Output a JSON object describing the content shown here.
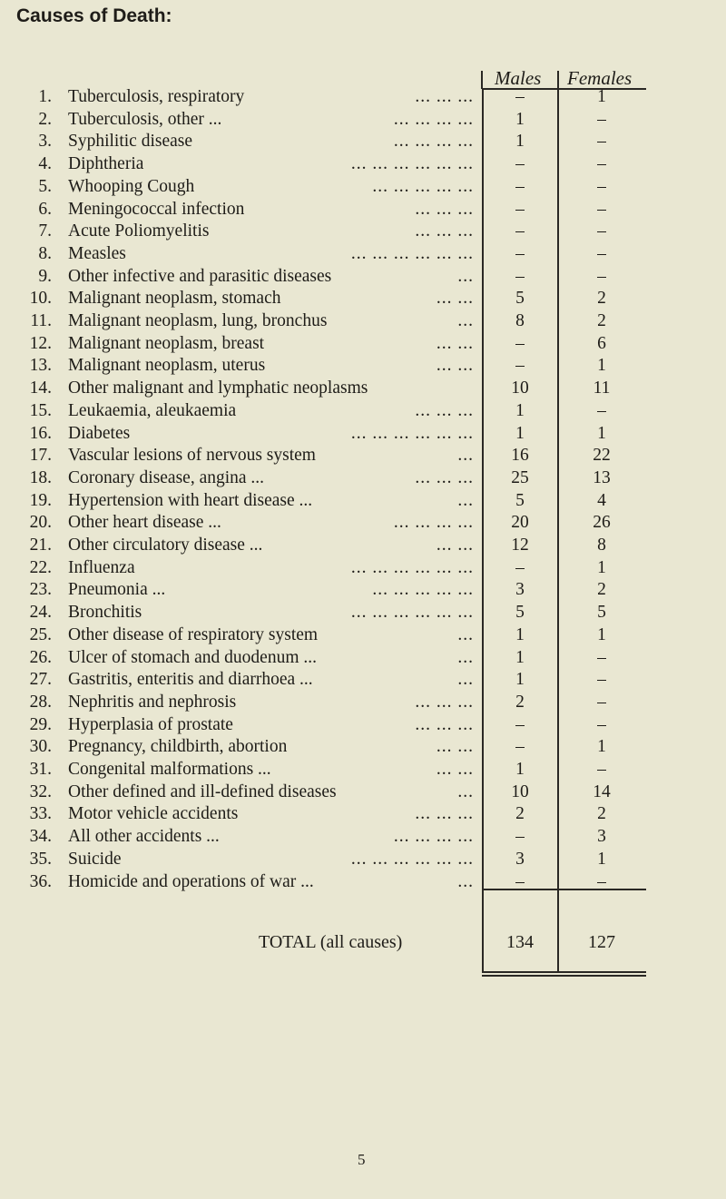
{
  "title": "Causes of Death:",
  "columns": {
    "males": "Males",
    "females": "Females"
  },
  "rows": [
    {
      "n": "1.",
      "label": "Tuberculosis, respiratory",
      "dots": "... ... ...",
      "males": "–",
      "females": "1"
    },
    {
      "n": "2.",
      "label": "Tuberculosis, other ...",
      "dots": "... ... ... ...",
      "males": "1",
      "females": "–"
    },
    {
      "n": "3.",
      "label": "Syphilitic disease",
      "dots": "... ... ... ...",
      "males": "1",
      "females": "–"
    },
    {
      "n": "4.",
      "label": "Diphtheria",
      "dots": "... ... ... ... ... ...",
      "males": "–",
      "females": "–"
    },
    {
      "n": "5.",
      "label": "Whooping Cough",
      "dots": "... ... ... ... ...",
      "males": "–",
      "females": "–"
    },
    {
      "n": "6.",
      "label": "Meningococcal infection",
      "dots": "... ... ...",
      "males": "–",
      "females": "–"
    },
    {
      "n": "7.",
      "label": "Acute Poliomyelitis",
      "dots": "... ... ...",
      "males": "–",
      "females": "–"
    },
    {
      "n": "8.",
      "label": "Measles",
      "dots": "... ... ... ... ... ...",
      "males": "–",
      "females": "–"
    },
    {
      "n": "9.",
      "label": "Other infective and parasitic diseases",
      "dots": "...",
      "males": "–",
      "females": "–"
    },
    {
      "n": "10.",
      "label": "Malignant neoplasm, stomach",
      "dots": "... ...",
      "males": "5",
      "females": "2"
    },
    {
      "n": "11.",
      "label": "Malignant neoplasm, lung, bronchus",
      "dots": "...",
      "males": "8",
      "females": "2"
    },
    {
      "n": "12.",
      "label": "Malignant neoplasm, breast",
      "dots": "... ...",
      "males": "–",
      "females": "6"
    },
    {
      "n": "13.",
      "label": "Malignant neoplasm, uterus",
      "dots": "... ...",
      "males": "–",
      "females": "1"
    },
    {
      "n": "14.",
      "label": "Other malignant and lymphatic neoplasms",
      "dots": "",
      "males": "10",
      "females": "11"
    },
    {
      "n": "15.",
      "label": "Leukaemia, aleukaemia",
      "dots": "... ... ...",
      "males": "1",
      "females": "–"
    },
    {
      "n": "16.",
      "label": "Diabetes",
      "dots": "... ... ... ... ... ...",
      "males": "1",
      "females": "1"
    },
    {
      "n": "17.",
      "label": "Vascular lesions of nervous system",
      "dots": "...",
      "males": "16",
      "females": "22"
    },
    {
      "n": "18.",
      "label": "Coronary disease, angina ...",
      "dots": "... ... ...",
      "males": "25",
      "females": "13"
    },
    {
      "n": "19.",
      "label": "Hypertension with heart disease ...",
      "dots": "...",
      "males": "5",
      "females": "4"
    },
    {
      "n": "20.",
      "label": "Other heart disease ...",
      "dots": "... ... ... ...",
      "males": "20",
      "females": "26"
    },
    {
      "n": "21.",
      "label": "Other circulatory disease ...",
      "dots": "... ...",
      "males": "12",
      "females": "8"
    },
    {
      "n": "22.",
      "label": "Influenza",
      "dots": "... ... ... ... ... ...",
      "males": "–",
      "females": "1"
    },
    {
      "n": "23.",
      "label": "Pneumonia ...",
      "dots": "... ... ... ... ...",
      "males": "3",
      "females": "2"
    },
    {
      "n": "24.",
      "label": "Bronchitis",
      "dots": "... ... ... ... ... ...",
      "males": "5",
      "females": "5"
    },
    {
      "n": "25.",
      "label": "Other disease of respiratory system",
      "dots": "...",
      "males": "1",
      "females": "1"
    },
    {
      "n": "26.",
      "label": "Ulcer of stomach and duodenum ...",
      "dots": "...",
      "males": "1",
      "females": "–"
    },
    {
      "n": "27.",
      "label": "Gastritis, enteritis and diarrhoea ...",
      "dots": "...",
      "males": "1",
      "females": "–"
    },
    {
      "n": "28.",
      "label": "Nephritis and nephrosis",
      "dots": "... ... ...",
      "males": "2",
      "females": "–"
    },
    {
      "n": "29.",
      "label": "Hyperplasia of prostate",
      "dots": "... ... ...",
      "males": "–",
      "females": "–"
    },
    {
      "n": "30.",
      "label": "Pregnancy, childbirth, abortion",
      "dots": "... ...",
      "males": "–",
      "females": "1"
    },
    {
      "n": "31.",
      "label": "Congenital malformations ...",
      "dots": "... ...",
      "males": "1",
      "females": "–"
    },
    {
      "n": "32.",
      "label": "Other defined and ill-defined diseases",
      "dots": "...",
      "males": "10",
      "females": "14"
    },
    {
      "n": "33.",
      "label": "Motor vehicle accidents",
      "dots": "... ... ...",
      "males": "2",
      "females": "2"
    },
    {
      "n": "34.",
      "label": "All other accidents ...",
      "dots": "... ... ... ...",
      "males": "–",
      "females": "3"
    },
    {
      "n": "35.",
      "label": "Suicide",
      "dots": "... ... ... ... ... ...",
      "males": "3",
      "females": "1"
    },
    {
      "n": "36.",
      "label": "Homicide and operations of war ...",
      "dots": "...",
      "males": "–",
      "females": "–"
    }
  ],
  "total": {
    "label": "TOTAL (all causes)",
    "males": "134",
    "females": "127"
  },
  "page_number": "5"
}
